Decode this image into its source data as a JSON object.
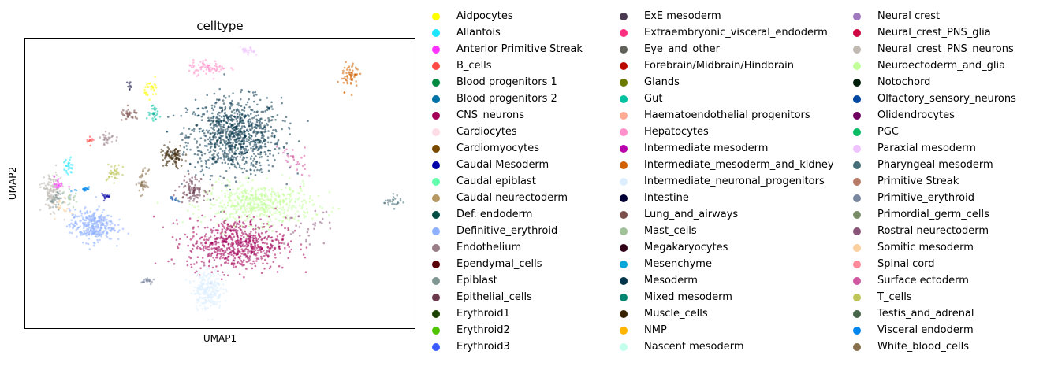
{
  "chart_data": {
    "type": "scatter",
    "title": "celltype",
    "xlabel": "UMAP1",
    "ylabel": "UMAP2",
    "grid": false,
    "legend_placement": "right",
    "categories": [
      {
        "name": "Aidpocytes",
        "color": "#ffff00"
      },
      {
        "name": "Allantois",
        "color": "#1ce6ff"
      },
      {
        "name": "Anterior Primitive Streak",
        "color": "#ff34ff"
      },
      {
        "name": "B_cells",
        "color": "#ff4a46"
      },
      {
        "name": "Blood progenitors 1",
        "color": "#008941"
      },
      {
        "name": "Blood progenitors 2",
        "color": "#006fa6"
      },
      {
        "name": "CNS_neurons",
        "color": "#a30059"
      },
      {
        "name": "Cardiocytes",
        "color": "#ffdbe5"
      },
      {
        "name": "Cardiomyocytes",
        "color": "#7a4900"
      },
      {
        "name": "Caudal Mesoderm",
        "color": "#0000a6"
      },
      {
        "name": "Caudal epiblast",
        "color": "#63ffac"
      },
      {
        "name": "Caudal neurectoderm",
        "color": "#b79762"
      },
      {
        "name": "Def. endoderm",
        "color": "#004d43"
      },
      {
        "name": "Definitive_erythroid",
        "color": "#8fb0ff"
      },
      {
        "name": "Endothelium",
        "color": "#997d87"
      },
      {
        "name": "Ependymal_cells",
        "color": "#5a0007"
      },
      {
        "name": "Epiblast",
        "color": "#809693"
      },
      {
        "name": "Epithelial_cells",
        "color": "#6a3a4c"
      },
      {
        "name": "Erythroid1",
        "color": "#1b4400"
      },
      {
        "name": "Erythroid2",
        "color": "#4fc601"
      },
      {
        "name": "Erythroid3",
        "color": "#3b5dff"
      },
      {
        "name": "ExE mesoderm",
        "color": "#4a3b53"
      },
      {
        "name": "Extraembryonic_visceral_endoderm",
        "color": "#ff2f80"
      },
      {
        "name": "Eye_and_other",
        "color": "#61615a"
      },
      {
        "name": "Forebrain/Midbrain/Hindbrain",
        "color": "#ba0900"
      },
      {
        "name": "Glands",
        "color": "#6b7900"
      },
      {
        "name": "Gut",
        "color": "#00c2a0"
      },
      {
        "name": "Haematoendothelial progenitors",
        "color": "#ffaa92"
      },
      {
        "name": "Hepatocytes",
        "color": "#ff90c9"
      },
      {
        "name": "Intermediate mesoderm",
        "color": "#b903aa"
      },
      {
        "name": "Intermediate_mesoderm_and_kidney",
        "color": "#d16100"
      },
      {
        "name": "Intermediate_neuronal_progenitors",
        "color": "#ddefff"
      },
      {
        "name": "Intestine",
        "color": "#000035"
      },
      {
        "name": "Lung_and_airways",
        "color": "#7b4f4b"
      },
      {
        "name": "Mast_cells",
        "color": "#a1c299"
      },
      {
        "name": "Megakaryocytes",
        "color": "#300018"
      },
      {
        "name": "Mesenchyme",
        "color": "#0aa6d8"
      },
      {
        "name": "Mesoderm",
        "color": "#013349"
      },
      {
        "name": "Mixed mesoderm",
        "color": "#00846f"
      },
      {
        "name": "Muscle_cells",
        "color": "#372101"
      },
      {
        "name": "NMP",
        "color": "#ffb500"
      },
      {
        "name": "Nascent mesoderm",
        "color": "#c2ffed"
      },
      {
        "name": "Neural crest",
        "color": "#a079bf"
      },
      {
        "name": "Neural_crest_PNS_glia",
        "color": "#cc0744"
      },
      {
        "name": "Neural_crest_PNS_neurons",
        "color": "#c0b9b2"
      },
      {
        "name": "Neuroectoderm_and_glia",
        "color": "#c2ff99"
      },
      {
        "name": "Notochord",
        "color": "#001e09"
      },
      {
        "name": "Olfactory_sensory_neurons",
        "color": "#00489c"
      },
      {
        "name": "Olidendrocytes",
        "color": "#6f0062"
      },
      {
        "name": "PGC",
        "color": "#0cbd66"
      },
      {
        "name": "Paraxial mesoderm",
        "color": "#eec3ff"
      },
      {
        "name": "Pharyngeal mesoderm",
        "color": "#456d75"
      },
      {
        "name": "Primitive Streak",
        "color": "#b77b68"
      },
      {
        "name": "Primitive_erythroid",
        "color": "#7a87a1"
      },
      {
        "name": "Primordial_germ_cells",
        "color": "#788d66"
      },
      {
        "name": "Rostral neurectoderm",
        "color": "#885578"
      },
      {
        "name": "Somitic mesoderm",
        "color": "#fad09f"
      },
      {
        "name": "Spinal cord",
        "color": "#ff8a9a"
      },
      {
        "name": "Surface ectoderm",
        "color": "#d157a0"
      },
      {
        "name": "T_cells",
        "color": "#bec459"
      },
      {
        "name": "Testis_and_adrenal",
        "color": "#456648"
      },
      {
        "name": "Visceral endoderm",
        "color": "#0086ed"
      },
      {
        "name": "White_blood_cells",
        "color": "#886f4c"
      }
    ],
    "clusters": [
      {
        "category": "Mesoderm",
        "x": 4.2,
        "y": 7.0,
        "sx": 1.9,
        "sy": 1.3,
        "n": 900
      },
      {
        "category": "Neuroectoderm_and_glia",
        "x": 5.3,
        "y": 4.4,
        "sx": 2.2,
        "sy": 0.7,
        "n": 500
      },
      {
        "category": "CNS_neurons",
        "x": 4.3,
        "y": 2.9,
        "sx": 2.0,
        "sy": 0.9,
        "n": 650
      },
      {
        "category": "Definitive_erythroid",
        "x": -2.2,
        "y": 3.6,
        "sx": 0.9,
        "sy": 0.55,
        "n": 320
      },
      {
        "category": "Intermediate_neuronal_progenitors",
        "x": 3.0,
        "y": 1.2,
        "sx": 0.6,
        "sy": 0.7,
        "n": 260
      },
      {
        "category": "Hepatocytes",
        "x": 3.0,
        "y": 9.6,
        "sx": 0.8,
        "sy": 0.25,
        "n": 70
      },
      {
        "category": "Paraxial mesoderm",
        "x": 4.8,
        "y": 10.2,
        "sx": 0.3,
        "sy": 0.15,
        "n": 25
      },
      {
        "category": "Intermediate_mesoderm_and_kidney",
        "x": 9.4,
        "y": 9.3,
        "sx": 0.35,
        "sy": 0.5,
        "n": 60
      },
      {
        "category": "Aidpocytes",
        "x": 0.5,
        "y": 8.8,
        "sx": 0.3,
        "sy": 0.3,
        "n": 30
      },
      {
        "category": "Gut",
        "x": 0.6,
        "y": 7.8,
        "sx": 0.3,
        "sy": 0.25,
        "n": 25
      },
      {
        "category": "Lung_and_airways",
        "x": -0.5,
        "y": 7.8,
        "sx": 0.4,
        "sy": 0.2,
        "n": 35
      },
      {
        "category": "Muscle_cells",
        "x": 1.4,
        "y": 6.2,
        "sx": 0.5,
        "sy": 0.4,
        "n": 90
      },
      {
        "category": "Epithelial_cells",
        "x": 2.3,
        "y": 5.0,
        "sx": 0.55,
        "sy": 0.4,
        "n": 90
      },
      {
        "category": "White_blood_cells",
        "x": 0.1,
        "y": 5.2,
        "sx": 0.2,
        "sy": 0.45,
        "n": 40
      },
      {
        "category": "T_cells",
        "x": -1.2,
        "y": 5.6,
        "sx": 0.3,
        "sy": 0.3,
        "n": 35
      },
      {
        "category": "Neural_crest_PNS_neurons",
        "x": -4.0,
        "y": 4.9,
        "sx": 0.4,
        "sy": 0.65,
        "n": 130
      },
      {
        "category": "Allantois",
        "x": -3.3,
        "y": 5.8,
        "sx": 0.25,
        "sy": 0.3,
        "n": 25
      },
      {
        "category": "Anterior Primitive Streak",
        "x": -3.7,
        "y": 5.2,
        "sx": 0.2,
        "sy": 0.25,
        "n": 20
      },
      {
        "category": "Somitic mesoderm",
        "x": -3.5,
        "y": 4.3,
        "sx": 0.3,
        "sy": 0.3,
        "n": 20
      },
      {
        "category": "Mast_cells",
        "x": -3.1,
        "y": 4.6,
        "sx": 0.3,
        "sy": 0.3,
        "n": 20
      },
      {
        "category": "Visceral endoderm",
        "x": -2.6,
        "y": 5.0,
        "sx": 0.35,
        "sy": 0.15,
        "n": 20
      },
      {
        "category": "Caudal Mesoderm",
        "x": -1.6,
        "y": 4.7,
        "sx": 0.25,
        "sy": 0.1,
        "n": 15
      },
      {
        "category": "B_cells",
        "x": -2.3,
        "y": 6.8,
        "sx": 0.15,
        "sy": 0.12,
        "n": 12
      },
      {
        "category": "Primitive_erythroid",
        "x": 0.3,
        "y": 1.5,
        "sx": 0.25,
        "sy": 0.12,
        "n": 20
      },
      {
        "category": "Pharyngeal mesoderm",
        "x": 11.3,
        "y": 4.5,
        "sx": 0.35,
        "sy": 0.2,
        "n": 25
      },
      {
        "category": "Olfactory_sensory_neurons",
        "x": 1.5,
        "y": 4.6,
        "sx": 0.3,
        "sy": 0.1,
        "n": 10
      },
      {
        "category": "Intestine",
        "x": -0.5,
        "y": 8.9,
        "sx": 0.1,
        "sy": 0.2,
        "n": 8
      },
      {
        "category": "Surface ectoderm",
        "x": 6.8,
        "y": 6.0,
        "sx": 0.6,
        "sy": 0.8,
        "n": 30
      },
      {
        "category": "Rostral neurectoderm",
        "x": 7.5,
        "y": 3.5,
        "sx": 1.0,
        "sy": 0.6,
        "n": 30
      },
      {
        "category": "Epiblast",
        "x": -3.8,
        "y": 4.6,
        "sx": 0.3,
        "sy": 0.3,
        "n": 30
      },
      {
        "category": "Endothelium",
        "x": -1.5,
        "y": 6.9,
        "sx": 0.3,
        "sy": 0.2,
        "n": 25
      }
    ]
  }
}
